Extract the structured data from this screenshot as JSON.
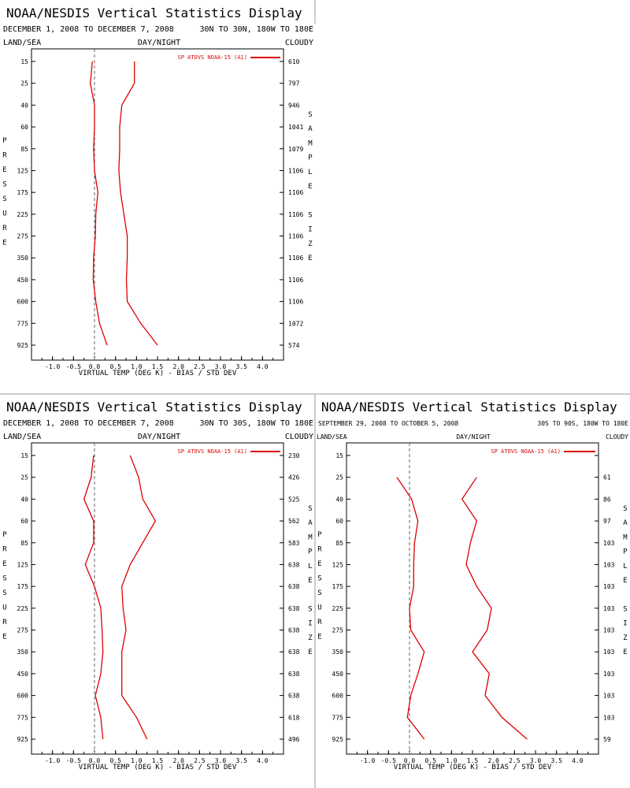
{
  "colors": {
    "series": "#dd0000",
    "axis": "#000000",
    "separator": "#999999",
    "zero_line": "#666666"
  },
  "panels": [
    {
      "title": "NOAA/NESDIS Vertical Statistics Display",
      "date_range": "DECEMBER 1, 2008 TO DECEMBER 7, 2008",
      "region": "30N TO 30N, 180W TO 180E",
      "land_sea": "LAND/SEA",
      "day_night": "DAY/NIGHT",
      "cloudy": "CLOUDY",
      "pressure_label": [
        "P",
        "R",
        "E",
        "S",
        "S",
        "U",
        "R",
        "E"
      ],
      "sample_size_label": [
        "S",
        "A",
        "M",
        "P",
        "L",
        "E",
        "",
        "S",
        "I",
        "Z",
        "E"
      ],
      "chart_data": {
        "type": "line",
        "title": "",
        "xlabel": "VIRTUAL TEMP (DEG K) - BIAS / STD DEV",
        "ylabel": "PRESSURE",
        "xlim": [
          -1.5,
          4.5
        ],
        "x_ticks": [
          "-1.0",
          "-0.5",
          "0.0",
          "0.5",
          "1.0",
          "1.5",
          "2.0",
          "2.5",
          "3.0",
          "3.5",
          "4.0"
        ],
        "pressure_levels": [
          "15",
          "25",
          "40",
          "60",
          "85",
          "125",
          "175",
          "225",
          "275",
          "350",
          "450",
          "600",
          "775",
          "925"
        ],
        "sample_size": [
          "610",
          "797",
          "946",
          "1041",
          "1079",
          "1106",
          "1106",
          "1106",
          "1106",
          "1106",
          "1106",
          "1106",
          "1072",
          "574"
        ],
        "legend": "SP ATOVS NOAA-15 (A1)",
        "series": [
          {
            "name": "BIAS",
            "values": [
              -0.05,
              -0.1,
              0.0,
              0.0,
              -0.02,
              0.0,
              0.08,
              0.03,
              0.02,
              -0.02,
              -0.03,
              0.03,
              0.12,
              0.3
            ]
          },
          {
            "name": "STD DEV",
            "values": [
              0.95,
              0.95,
              0.65,
              0.6,
              0.6,
              0.58,
              0.62,
              0.7,
              0.78,
              0.78,
              0.76,
              0.78,
              1.1,
              1.5
            ]
          }
        ]
      }
    },
    {
      "title": "NOAA/NESDIS Vertical Statistics Display",
      "date_range": "DECEMBER 1, 2008 TO DECEMBER 7, 2008",
      "region": "30N TO 30S, 180W TO 180E",
      "land_sea": "LAND/SEA",
      "day_night": "DAY/NIGHT",
      "cloudy": "CLOUDY",
      "pressure_label": [
        "P",
        "R",
        "E",
        "S",
        "S",
        "U",
        "R",
        "E"
      ],
      "sample_size_label": [
        "S",
        "A",
        "M",
        "P",
        "L",
        "E",
        "",
        "S",
        "I",
        "Z",
        "E"
      ],
      "chart_data": {
        "type": "line",
        "title": "",
        "xlabel": "VIRTUAL TEMP (DEG K) - BIAS / STD DEV",
        "ylabel": "PRESSURE",
        "xlim": [
          -1.5,
          4.5
        ],
        "x_ticks": [
          "-1.0",
          "-0.5",
          "0.0",
          "0.5",
          "1.0",
          "1.5",
          "2.0",
          "2.5",
          "3.0",
          "3.5",
          "4.0"
        ],
        "pressure_levels": [
          "15",
          "25",
          "40",
          "60",
          "85",
          "125",
          "175",
          "225",
          "275",
          "350",
          "450",
          "600",
          "775",
          "925"
        ],
        "sample_size": [
          "230",
          "426",
          "525",
          "562",
          "583",
          "638",
          "638",
          "638",
          "638",
          "638",
          "638",
          "638",
          "618",
          "496"
        ],
        "legend": "SP ATOVS NOAA-15 (A1)",
        "series": [
          {
            "name": "BIAS",
            "values": [
              -0.02,
              -0.08,
              -0.25,
              -0.02,
              -0.02,
              -0.22,
              0.0,
              0.15,
              0.18,
              0.2,
              0.15,
              0.02,
              0.15,
              0.2
            ]
          },
          {
            "name": "STD DEV",
            "values": [
              0.85,
              1.05,
              1.15,
              1.45,
              1.15,
              0.85,
              0.65,
              0.68,
              0.75,
              0.65,
              0.65,
              0.65,
              1.0,
              1.25
            ]
          }
        ]
      }
    },
    {
      "title": "NOAA/NESDIS Vertical Statistics Display",
      "date_range": "SEPTEMBER 29, 2008 TO OCTOBER 5, 2008",
      "region": "30S TO 90S, 180W TO 180E",
      "land_sea": "LAND/SEA",
      "day_night": "DAY/NIGHT",
      "cloudy": "CLOUDY",
      "pressure_label": [
        "P",
        "R",
        "E",
        "S",
        "S",
        "U",
        "R",
        "E"
      ],
      "sample_size_label": [
        "S",
        "A",
        "M",
        "P",
        "L",
        "E",
        "",
        "S",
        "I",
        "Z",
        "E"
      ],
      "chart_data": {
        "type": "line",
        "title": "",
        "xlabel": "VIRTUAL TEMP (DEG K) - BIAS / STD DEV",
        "ylabel": "PRESSURE",
        "xlim": [
          -1.5,
          4.5
        ],
        "x_ticks": [
          "-1.0",
          "-0.5",
          "0.0",
          "0.5",
          "1.0",
          "1.5",
          "2.0",
          "2.5",
          "3.0",
          "3.5",
          "4.0"
        ],
        "pressure_levels": [
          "15",
          "25",
          "40",
          "60",
          "85",
          "125",
          "175",
          "225",
          "275",
          "350",
          "450",
          "600",
          "775",
          "925"
        ],
        "sample_size": [
          "",
          "61",
          "86",
          "97",
          "103",
          "103",
          "103",
          "103",
          "103",
          "103",
          "103",
          "103",
          "103",
          "59"
        ],
        "legend": "SP ATOVS NOAA-15 (A1)",
        "series": [
          {
            "name": "BIAS",
            "values": [
              null,
              -0.3,
              0.05,
              0.2,
              0.12,
              0.1,
              0.1,
              0.0,
              0.03,
              0.35,
              0.2,
              0.03,
              -0.05,
              0.35
            ]
          },
          {
            "name": "STD DEV",
            "values": [
              null,
              1.6,
              1.25,
              1.6,
              1.45,
              1.35,
              1.6,
              1.95,
              1.85,
              1.5,
              1.9,
              1.8,
              2.2,
              2.8
            ]
          }
        ]
      }
    }
  ]
}
